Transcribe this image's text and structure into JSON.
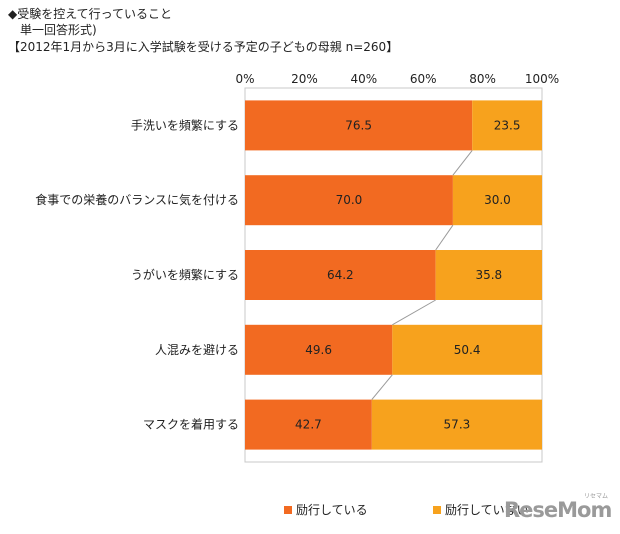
{
  "header": {
    "line1": "◆受験を控えて行っていること",
    "line2": "単一回答形式)",
    "line3": "【2012年1月から3月に入学試験を受ける予定の子どもの母親 n=260】"
  },
  "logo": {
    "text": "ReseMom",
    "sub": "リセマム"
  },
  "chart_data": {
    "type": "bar",
    "orientation": "horizontal",
    "stacked": "percent",
    "categories": [
      "手洗いを頻繁にする",
      "食事での栄養のバランスに気を付ける",
      "うがいを頻繁にする",
      "人混みを避ける",
      "マスクを着用する"
    ],
    "series": [
      {
        "name": "励行している",
        "values": [
          76.5,
          70.0,
          64.2,
          49.6,
          42.7
        ],
        "color": "#f26a21"
      },
      {
        "name": "励行していない",
        "values": [
          23.5,
          30.0,
          35.8,
          50.4,
          57.3
        ],
        "color": "#f7a21d"
      }
    ],
    "value_labels": [
      [
        "76.5",
        "70.0",
        "64.2",
        "49.6",
        "42.7"
      ],
      [
        "23.5",
        "30.0",
        "35.8",
        "50.4",
        "57.3"
      ]
    ],
    "xlim": [
      0,
      100
    ],
    "xticks": [
      "0%",
      "20%",
      "40%",
      "60%",
      "80%",
      "100%"
    ],
    "axis_position": "top",
    "series_connector_lines": true,
    "legend": "bottom"
  }
}
